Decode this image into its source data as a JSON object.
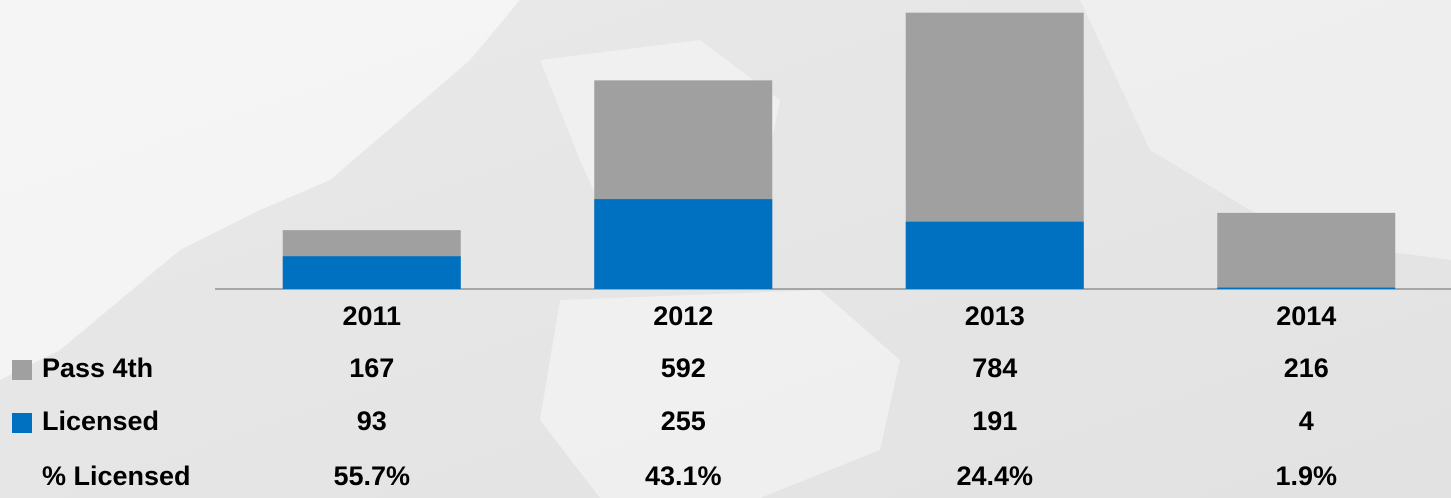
{
  "chart_data": {
    "type": "bar",
    "categories": [
      "2011",
      "2012",
      "2013",
      "2014"
    ],
    "series": [
      {
        "name": "Pass 4th",
        "color": "#a0a0a0",
        "values": [
          167,
          592,
          784,
          216
        ]
      },
      {
        "name": "Licensed",
        "color": "#0070c0",
        "values": [
          93,
          255,
          191,
          4
        ]
      }
    ],
    "percent_licensed": {
      "name": "% Licensed",
      "values": [
        55.7,
        43.1,
        24.4,
        1.9
      ],
      "value_labels": [
        "55.7%",
        "43.1%",
        "24.4%",
        "1.9%"
      ]
    },
    "ylim": [
      0,
      820
    ]
  }
}
